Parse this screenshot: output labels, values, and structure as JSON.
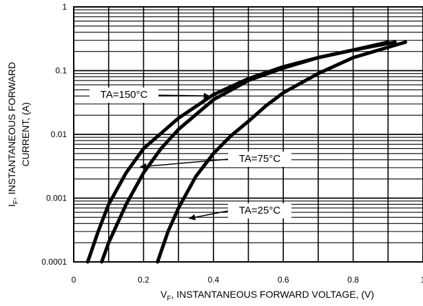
{
  "chart_data": {
    "type": "line",
    "title": "",
    "xlabel_main": "V",
    "xlabel_sub": "F",
    "xlabel_rest": ", INSTANTANEOUS FORWARD VOLTAGE, (V)",
    "ylabel_main": "I",
    "ylabel_sub": "F",
    "ylabel_rest": ", INSTANTANEOUS FORWARD",
    "ylabel_line2": "CURRENT, (A)",
    "x_scale": "linear",
    "y_scale": "log",
    "xlim": [
      0,
      1
    ],
    "ylim": [
      0.0001,
      1
    ],
    "x_ticks": [
      "0",
      "0.2",
      "0.4",
      "0.6",
      "0.8",
      "1"
    ],
    "y_ticks": [
      "0.0001",
      "0.001",
      "0.01",
      "0.1",
      "1"
    ],
    "grid": true,
    "series": [
      {
        "name": "TA=150°C",
        "x": [
          0.04,
          0.07,
          0.1,
          0.15,
          0.2,
          0.3,
          0.4,
          0.5,
          0.6,
          0.7,
          0.8,
          0.9
        ],
        "y": [
          0.0001,
          0.0003,
          0.0008,
          0.0025,
          0.006,
          0.018,
          0.042,
          0.075,
          0.115,
          0.16,
          0.21,
          0.28
        ]
      },
      {
        "name": "TA=75°C",
        "x": [
          0.08,
          0.1,
          0.15,
          0.2,
          0.25,
          0.3,
          0.4,
          0.5,
          0.6,
          0.7,
          0.8,
          0.92
        ],
        "y": [
          0.0001,
          0.0002,
          0.0008,
          0.0025,
          0.006,
          0.012,
          0.035,
          0.07,
          0.11,
          0.16,
          0.21,
          0.28
        ]
      },
      {
        "name": "TA=25°C",
        "x": [
          0.24,
          0.27,
          0.3,
          0.35,
          0.4,
          0.45,
          0.5,
          0.55,
          0.6,
          0.7,
          0.8,
          0.95
        ],
        "y": [
          0.0001,
          0.0003,
          0.0007,
          0.0022,
          0.005,
          0.0095,
          0.016,
          0.028,
          0.045,
          0.09,
          0.16,
          0.28
        ]
      }
    ],
    "annotations": [
      {
        "text": "TA=150°C",
        "series": 0
      },
      {
        "text": "TA=75°C",
        "series": 1
      },
      {
        "text": "TA=25°C",
        "series": 2
      }
    ]
  }
}
